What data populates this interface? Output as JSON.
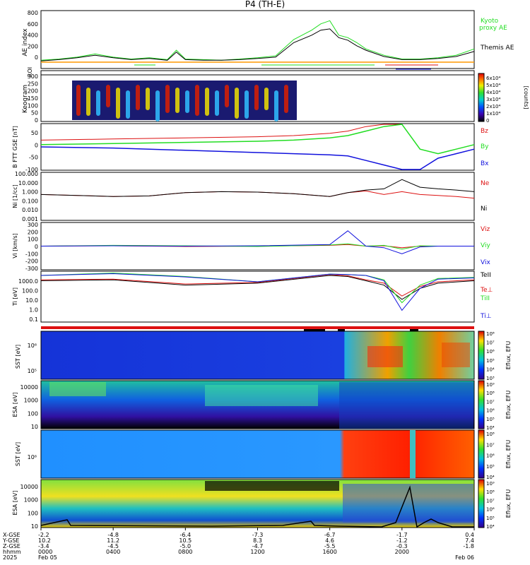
{
  "title": "P4 (TH-E)",
  "colors": {
    "green": "#22dd22",
    "red": "#dd1111",
    "blue": "#1111dd",
    "black": "#000000",
    "orange": "#ff9900"
  },
  "chart_data": [
    {
      "id": "ae",
      "type": "line",
      "ylabel": "AE index",
      "ylim": [
        -100,
        800
      ],
      "yticks": [
        "800",
        "600",
        "400",
        "200",
        "0"
      ],
      "legend": [
        "Kyoto",
        "proxy AE",
        "Themis AE"
      ],
      "series": [
        {
          "name": "Kyoto proxy AE",
          "color": "green",
          "x": [
            0,
            1,
            2,
            3,
            4,
            5,
            6,
            7,
            7.5,
            8,
            9,
            10,
            11,
            12,
            13,
            14,
            15,
            15.5,
            16,
            16.5,
            17,
            17.5,
            18,
            19,
            20,
            21,
            22,
            23,
            24
          ],
          "values": [
            20,
            40,
            70,
            120,
            70,
            40,
            60,
            30,
            180,
            40,
            30,
            20,
            40,
            60,
            90,
            350,
            500,
            600,
            650,
            420,
            380,
            300,
            200,
            100,
            40,
            40,
            60,
            100,
            200
          ]
        },
        {
          "name": "Themis AE",
          "color": "black",
          "x": [
            0,
            1,
            2,
            3,
            4,
            5,
            6,
            7,
            7.5,
            8,
            9,
            10,
            11,
            12,
            13,
            14,
            15,
            15.5,
            16,
            16.5,
            17,
            17.5,
            18,
            19,
            20,
            21,
            22,
            23,
            24
          ],
          "values": [
            10,
            30,
            60,
            100,
            60,
            30,
            50,
            20,
            150,
            30,
            20,
            20,
            30,
            50,
            70,
            300,
            420,
            500,
            520,
            380,
            340,
            250,
            180,
            80,
            30,
            30,
            50,
            80,
            160
          ]
        }
      ]
    },
    {
      "id": "roi",
      "type": "bar",
      "ylabel": "ROI"
    },
    {
      "id": "keogram",
      "type": "heatmap",
      "ylabel": "Keogram",
      "yticks": [
        "300",
        "250",
        "200",
        "150",
        "100",
        "50",
        "0"
      ],
      "colorbar": [
        "6x10⁴",
        "5x10⁴",
        "4x10⁴",
        "3x10⁴",
        "2x10⁴",
        "1x10⁴",
        "0"
      ],
      "colorbar_label": "[counts]"
    },
    {
      "id": "bfield",
      "type": "line",
      "ylabel": "B FTT GSE [nT]",
      "yticks": [
        "50",
        "0",
        "-50",
        "-100"
      ],
      "ylim": [
        -100,
        100
      ],
      "series": [
        {
          "name": "Bz",
          "color": "red",
          "x": [
            0,
            4,
            8,
            12,
            14,
            16,
            17,
            18,
            19,
            20
          ],
          "values": [
            30,
            35,
            40,
            45,
            50,
            60,
            70,
            90,
            110,
            120
          ]
        },
        {
          "name": "By",
          "color": "green",
          "x": [
            0,
            4,
            8,
            12,
            14,
            16,
            17,
            18,
            19,
            20,
            21,
            22,
            23,
            24
          ],
          "values": [
            10,
            15,
            20,
            25,
            30,
            40,
            50,
            70,
            90,
            110,
            -10,
            -30,
            -10,
            10
          ]
        },
        {
          "name": "Bx",
          "color": "blue",
          "x": [
            0,
            4,
            8,
            12,
            14,
            16,
            17,
            18,
            19,
            20,
            21,
            22,
            23,
            24
          ],
          "values": [
            0,
            -5,
            -15,
            -25,
            -30,
            -35,
            -40,
            -60,
            -80,
            -100,
            -100,
            -50,
            -30,
            -10
          ]
        }
      ]
    },
    {
      "id": "density",
      "type": "line",
      "ylabel": "Ni [1/cc]",
      "yticks": [
        "100.000",
        "10.000",
        "1.000",
        "0.100",
        "0.010",
        "0.001"
      ],
      "log": true,
      "series": [
        {
          "name": "Ne",
          "color": "red",
          "x": [
            0,
            2,
            4,
            6,
            8,
            10,
            12,
            14,
            16,
            17,
            18,
            19,
            20,
            21,
            22,
            23,
            24
          ],
          "values": [
            0.5,
            0.4,
            0.3,
            0.35,
            0.8,
            1.0,
            0.9,
            0.6,
            0.3,
            0.8,
            1.2,
            0.5,
            1.0,
            0.5,
            0.4,
            0.3,
            0.2
          ]
        },
        {
          "name": "Ni",
          "color": "black",
          "x": [
            0,
            2,
            4,
            6,
            8,
            10,
            12,
            14,
            16,
            17,
            18,
            19,
            20,
            21,
            22,
            23,
            24
          ],
          "values": [
            0.5,
            0.4,
            0.3,
            0.35,
            0.8,
            1.0,
            0.9,
            0.6,
            0.3,
            0.8,
            1.5,
            2.0,
            20,
            3,
            2,
            1.5,
            1
          ]
        }
      ]
    },
    {
      "id": "velocity",
      "type": "line",
      "ylabel": "Vi [km/s]",
      "yticks": [
        "300",
        "200",
        "100",
        "0",
        "-100",
        "-200",
        "-300"
      ],
      "ylim": [
        -300,
        300
      ],
      "series": [
        {
          "name": "Viz",
          "color": "red",
          "x": [
            0,
            4,
            8,
            12,
            16,
            17,
            18,
            19,
            20,
            21,
            22,
            24
          ],
          "values": [
            0,
            5,
            -5,
            0,
            10,
            20,
            0,
            5,
            -20,
            0,
            0,
            0
          ]
        },
        {
          "name": "Viy",
          "color": "green",
          "x": [
            0,
            4,
            8,
            12,
            16,
            17,
            18,
            19,
            20,
            21,
            22,
            24
          ],
          "values": [
            0,
            10,
            5,
            -5,
            15,
            30,
            0,
            10,
            -40,
            5,
            0,
            0
          ]
        },
        {
          "name": "Vix",
          "color": "blue",
          "x": [
            0,
            4,
            8,
            12,
            16,
            17,
            18,
            19,
            20,
            21,
            22,
            24
          ],
          "values": [
            0,
            5,
            0,
            5,
            20,
            200,
            0,
            -20,
            -100,
            -10,
            0,
            0
          ]
        }
      ]
    },
    {
      "id": "temperature",
      "type": "line",
      "ylabel": "Ti [eV]",
      "yticks": [
        "1000.0",
        "100.0",
        "10.0",
        "1.0",
        "0.1"
      ],
      "log": true,
      "legend": [
        "TeII",
        "Te⊥",
        "TiII",
        "Ti⊥"
      ],
      "series": [
        {
          "name": "TeII",
          "color": "black",
          "x": [
            0,
            4,
            8,
            12,
            16,
            17,
            18,
            19,
            20,
            21,
            22,
            24
          ],
          "values": [
            500,
            600,
            200,
            300,
            1500,
            1200,
            500,
            200,
            10,
            100,
            300,
            500
          ]
        },
        {
          "name": "Te⊥",
          "color": "red",
          "x": [
            0,
            4,
            8,
            12,
            16,
            17,
            18,
            19,
            20,
            21,
            22,
            24
          ],
          "values": [
            600,
            700,
            250,
            350,
            1800,
            1400,
            600,
            300,
            20,
            150,
            400,
            600
          ]
        },
        {
          "name": "TiII",
          "color": "green",
          "x": [
            0,
            4,
            8,
            12,
            16,
            17,
            18,
            19,
            20,
            21,
            22,
            24
          ],
          "values": [
            1500,
            2500,
            1200,
            400,
            2000,
            1800,
            1500,
            600,
            5,
            200,
            800,
            1000
          ]
        },
        {
          "name": "Ti⊥",
          "color": "blue",
          "x": [
            0,
            4,
            8,
            12,
            16,
            17,
            18,
            19,
            20,
            21,
            22,
            24
          ],
          "values": [
            1500,
            2200,
            1100,
            400,
            2000,
            1800,
            1500,
            500,
            1,
            100,
            700,
            900
          ]
        }
      ]
    },
    {
      "id": "sst_e",
      "type": "heatmap",
      "ylabel": "SST [eV]",
      "yticks": [
        "10⁶",
        "10⁵"
      ],
      "colorbar": [
        "10⁸",
        "10⁷",
        "10⁶",
        "10⁵",
        "10⁴",
        "10³"
      ],
      "colorbar_label": "Eflux, EFU"
    },
    {
      "id": "esa_e",
      "type": "heatmap",
      "ylabel": "ESA [eV]",
      "yticks": [
        "10000",
        "1000",
        "100",
        "10"
      ],
      "colorbar": [
        "10⁹",
        "10⁸",
        "10⁷",
        "10⁶",
        "10⁵",
        "10⁴"
      ],
      "colorbar_label": "Eflux, EFU"
    },
    {
      "id": "sst_i",
      "type": "heatmap",
      "ylabel": "SST [eV]",
      "yticks": [
        "10⁶"
      ],
      "colorbar": [
        "10⁸",
        "10⁷",
        "10⁶",
        "10⁵",
        "10⁴"
      ],
      "colorbar_label": "Eflux, EFU"
    },
    {
      "id": "esa_i",
      "type": "heatmap",
      "ylabel": "ESA [eV]",
      "yticks": [
        "10000",
        "1000",
        "100",
        "10"
      ],
      "colorbar": [
        "10⁹",
        "10⁸",
        "10⁷",
        "10⁶",
        "10⁵",
        "10⁴"
      ],
      "colorbar_label": "Eflux, EFU"
    }
  ],
  "xaxis": {
    "row_labels": [
      "X-GSE",
      "Y-GSE",
      "Z-GSE",
      "hhmm",
      "2025"
    ],
    "ticks": [
      {
        "x": 0,
        "vals": [
          "-2.2",
          "10.2",
          "-3.4",
          "0000",
          "Feb 05"
        ]
      },
      {
        "x": 4,
        "vals": [
          "-4.8",
          "11.2",
          "-4.5",
          "0400",
          ""
        ]
      },
      {
        "x": 8,
        "vals": [
          "-6.4",
          "10.5",
          "-5.0",
          "0800",
          ""
        ]
      },
      {
        "x": 12,
        "vals": [
          "-7.3",
          "8.3",
          "-4.7",
          "1200",
          ""
        ]
      },
      {
        "x": 16,
        "vals": [
          "-6.7",
          "4.6",
          "-5.5",
          "1600",
          ""
        ]
      },
      {
        "x": 20,
        "vals": [
          "-1.7",
          "-1.2",
          "-0.3",
          "2000",
          ""
        ]
      },
      {
        "x": 24,
        "vals": [
          "0.4",
          "7.4",
          "-1.8",
          "",
          "Feb 06"
        ]
      }
    ]
  }
}
